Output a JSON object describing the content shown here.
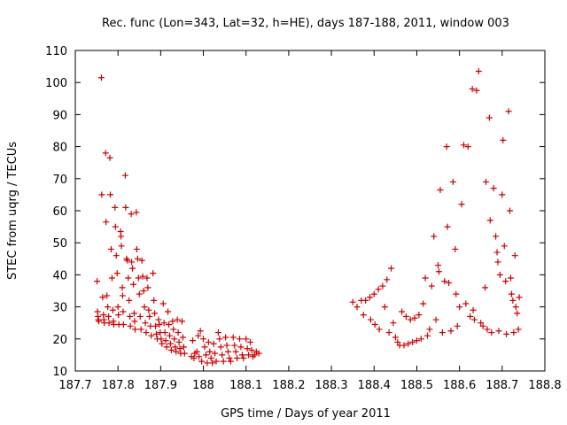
{
  "chart_data": {
    "type": "scatter",
    "title": "Rec. func (Lon=343, Lat=32, h=HE), days 187-188, 2011, window 003",
    "xlabel": "GPS time / Days of year 2011",
    "ylabel": "STEC from uqrg / TECUs",
    "xlim": [
      187.7,
      188.8
    ],
    "ylim": [
      10,
      110
    ],
    "xticks": [
      187.7,
      187.8,
      187.9,
      188.0,
      188.1,
      188.2,
      188.3,
      188.4,
      188.5,
      188.6,
      188.7,
      188.8
    ],
    "xtick_labels": [
      "187.7",
      "187.8",
      "187.9",
      "188",
      "188.1",
      "188.2",
      "188.3",
      "188.4",
      "188.5",
      "188.6",
      "188.7",
      "188.8"
    ],
    "yticks": [
      10,
      20,
      30,
      40,
      50,
      60,
      70,
      80,
      90,
      100,
      110
    ],
    "ytick_labels": [
      "10",
      "20",
      "30",
      "40",
      "50",
      "60",
      "70",
      "80",
      "90",
      "100",
      "110"
    ],
    "grid": false,
    "marker": "plus",
    "color": "#cc0000",
    "series": [
      {
        "points": [
          [
            187.751,
            38
          ],
          [
            187.752,
            28.5
          ],
          [
            187.753,
            27
          ],
          [
            187.754,
            26
          ],
          [
            187.755,
            25.5
          ],
          [
            187.761,
            101.5
          ],
          [
            187.762,
            65
          ],
          [
            187.764,
            33
          ],
          [
            187.766,
            27.5
          ],
          [
            187.767,
            26
          ],
          [
            187.768,
            25
          ],
          [
            187.771,
            78
          ],
          [
            187.772,
            56.5
          ],
          [
            187.774,
            33.5
          ],
          [
            187.776,
            30
          ],
          [
            187.778,
            27
          ],
          [
            187.779,
            25
          ],
          [
            187.781,
            76.5
          ],
          [
            187.782,
            65
          ],
          [
            187.784,
            48
          ],
          [
            187.786,
            39
          ],
          [
            187.788,
            29
          ],
          [
            187.789,
            25.5
          ],
          [
            187.79,
            24.5
          ],
          [
            187.793,
            61
          ],
          [
            187.794,
            55
          ],
          [
            187.796,
            46
          ],
          [
            187.798,
            40.5
          ],
          [
            187.8,
            30
          ],
          [
            187.801,
            27.5
          ],
          [
            187.802,
            24.5
          ],
          [
            187.806,
            53.5
          ],
          [
            187.807,
            52
          ],
          [
            187.808,
            49
          ],
          [
            187.81,
            36
          ],
          [
            187.811,
            33.5
          ],
          [
            187.812,
            28.5
          ],
          [
            187.813,
            24.5
          ],
          [
            187.817,
            71
          ],
          [
            187.818,
            61
          ],
          [
            187.82,
            45
          ],
          [
            187.822,
            44.5
          ],
          [
            187.824,
            39
          ],
          [
            187.826,
            32
          ],
          [
            187.828,
            27
          ],
          [
            187.829,
            24
          ],
          [
            187.831,
            59
          ],
          [
            187.832,
            44
          ],
          [
            187.834,
            42
          ],
          [
            187.836,
            37
          ],
          [
            187.838,
            28
          ],
          [
            187.839,
            25.5
          ],
          [
            187.84,
            23
          ],
          [
            187.843,
            59.5
          ],
          [
            187.844,
            48
          ],
          [
            187.846,
            45
          ],
          [
            187.848,
            39
          ],
          [
            187.85,
            34
          ],
          [
            187.852,
            27
          ],
          [
            187.854,
            23
          ],
          [
            187.856,
            44.5
          ],
          [
            187.858,
            39.5
          ],
          [
            187.86,
            35
          ],
          [
            187.862,
            30
          ],
          [
            187.864,
            25
          ],
          [
            187.866,
            22
          ],
          [
            187.868,
            39
          ],
          [
            187.87,
            36
          ],
          [
            187.872,
            29
          ],
          [
            187.874,
            27
          ],
          [
            187.876,
            24
          ],
          [
            187.878,
            21
          ],
          [
            187.882,
            40.5
          ],
          [
            187.884,
            32
          ],
          [
            187.886,
            28
          ],
          [
            187.888,
            24
          ],
          [
            187.89,
            21.5
          ],
          [
            187.892,
            20
          ],
          [
            187.895,
            26
          ],
          [
            187.897,
            24.5
          ],
          [
            187.899,
            22
          ],
          [
            187.901,
            20
          ],
          [
            187.903,
            18.5
          ],
          [
            187.906,
            31
          ],
          [
            187.908,
            25
          ],
          [
            187.91,
            22
          ],
          [
            187.912,
            19.5
          ],
          [
            187.914,
            17.5
          ],
          [
            187.917,
            28.5
          ],
          [
            187.919,
            24.5
          ],
          [
            187.921,
            21
          ],
          [
            187.923,
            18.5
          ],
          [
            187.925,
            16.5
          ],
          [
            187.928,
            25.5
          ],
          [
            187.93,
            23
          ],
          [
            187.932,
            20
          ],
          [
            187.934,
            17.5
          ],
          [
            187.936,
            16
          ],
          [
            187.939,
            26
          ],
          [
            187.941,
            22
          ],
          [
            187.943,
            19
          ],
          [
            187.945,
            17
          ],
          [
            187.947,
            15.5
          ],
          [
            187.95,
            25.5
          ],
          [
            187.952,
            20.5
          ],
          [
            187.954,
            17.5
          ],
          [
            187.956,
            15.5
          ],
          [
            187.972,
            14.5
          ],
          [
            187.975,
            19.5
          ],
          [
            187.978,
            14
          ],
          [
            187.98,
            15.5
          ],
          [
            187.985,
            16
          ],
          [
            187.988,
            21
          ],
          [
            187.99,
            14.5
          ],
          [
            187.993,
            22.5
          ],
          [
            187.996,
            13
          ],
          [
            188.0,
            20
          ],
          [
            188.003,
            17.5
          ],
          [
            188.006,
            15
          ],
          [
            188.009,
            12.5
          ],
          [
            188.012,
            19
          ],
          [
            188.015,
            16
          ],
          [
            188.018,
            14
          ],
          [
            188.021,
            12.5
          ],
          [
            188.024,
            18.5
          ],
          [
            188.027,
            15.5
          ],
          [
            188.03,
            13
          ],
          [
            188.035,
            22
          ],
          [
            188.038,
            20
          ],
          [
            188.041,
            17.5
          ],
          [
            188.044,
            15
          ],
          [
            188.047,
            13
          ],
          [
            188.052,
            20.5
          ],
          [
            188.055,
            18
          ],
          [
            188.058,
            16
          ],
          [
            188.061,
            14
          ],
          [
            188.064,
            13
          ],
          [
            188.07,
            20.5
          ],
          [
            188.073,
            18
          ],
          [
            188.076,
            16
          ],
          [
            188.079,
            14
          ],
          [
            188.085,
            20
          ],
          [
            188.088,
            17.5
          ],
          [
            188.091,
            15
          ],
          [
            188.094,
            14
          ],
          [
            188.1,
            20
          ],
          [
            188.103,
            17
          ],
          [
            188.106,
            15
          ],
          [
            188.11,
            19
          ],
          [
            188.113,
            16.5
          ],
          [
            188.116,
            14.5
          ],
          [
            188.12,
            15
          ],
          [
            188.124,
            16
          ],
          [
            188.13,
            15.5
          ],
          [
            188.35,
            31.5
          ],
          [
            188.36,
            30
          ],
          [
            188.37,
            32
          ],
          [
            188.375,
            27.5
          ],
          [
            188.38,
            32
          ],
          [
            188.39,
            33
          ],
          [
            188.392,
            26
          ],
          [
            188.4,
            34
          ],
          [
            188.402,
            24.5
          ],
          [
            188.41,
            35.5
          ],
          [
            188.412,
            23
          ],
          [
            188.42,
            36.5
          ],
          [
            188.425,
            30
          ],
          [
            188.43,
            38.5
          ],
          [
            188.435,
            22
          ],
          [
            188.44,
            42
          ],
          [
            188.445,
            25
          ],
          [
            188.45,
            20.5
          ],
          [
            188.455,
            19
          ],
          [
            188.46,
            18
          ],
          [
            188.465,
            28.5
          ],
          [
            188.47,
            18
          ],
          [
            188.475,
            27
          ],
          [
            188.48,
            18.5
          ],
          [
            188.485,
            26
          ],
          [
            188.49,
            19
          ],
          [
            188.495,
            26.5
          ],
          [
            188.5,
            19.5
          ],
          [
            188.505,
            27.5
          ],
          [
            188.51,
            20
          ],
          [
            188.515,
            31
          ],
          [
            188.52,
            39
          ],
          [
            188.525,
            21
          ],
          [
            188.53,
            23
          ],
          [
            188.535,
            36.5
          ],
          [
            188.54,
            52
          ],
          [
            188.545,
            26
          ],
          [
            188.55,
            43
          ],
          [
            188.552,
            41
          ],
          [
            188.555,
            66.5
          ],
          [
            188.56,
            22
          ],
          [
            188.565,
            38
          ],
          [
            188.57,
            80
          ],
          [
            188.572,
            55
          ],
          [
            188.575,
            37.5
          ],
          [
            188.58,
            22.5
          ],
          [
            188.585,
            69
          ],
          [
            188.59,
            48
          ],
          [
            188.592,
            34
          ],
          [
            188.595,
            24
          ],
          [
            188.6,
            30
          ],
          [
            188.605,
            62
          ],
          [
            188.61,
            80.5
          ],
          [
            188.615,
            31
          ],
          [
            188.62,
            80
          ],
          [
            188.625,
            27
          ],
          [
            188.63,
            98
          ],
          [
            188.632,
            29
          ],
          [
            188.635,
            26
          ],
          [
            188.64,
            97.5
          ],
          [
            188.645,
            103.5
          ],
          [
            188.65,
            25
          ],
          [
            188.655,
            24
          ],
          [
            188.66,
            36
          ],
          [
            188.662,
            69
          ],
          [
            188.665,
            23
          ],
          [
            188.67,
            89
          ],
          [
            188.672,
            57
          ],
          [
            188.675,
            22
          ],
          [
            188.68,
            67
          ],
          [
            188.685,
            52
          ],
          [
            188.688,
            47
          ],
          [
            188.69,
            44
          ],
          [
            188.692,
            22.5
          ],
          [
            188.695,
            40
          ],
          [
            188.7,
            65
          ],
          [
            188.702,
            82
          ],
          [
            188.705,
            49
          ],
          [
            188.708,
            38
          ],
          [
            188.71,
            21.5
          ],
          [
            188.715,
            91
          ],
          [
            188.718,
            60
          ],
          [
            188.72,
            39
          ],
          [
            188.722,
            34
          ],
          [
            188.725,
            32
          ],
          [
            188.727,
            22
          ],
          [
            188.73,
            46
          ],
          [
            188.732,
            30
          ],
          [
            188.735,
            28
          ],
          [
            188.738,
            23
          ],
          [
            188.74,
            33
          ]
        ]
      }
    ]
  }
}
